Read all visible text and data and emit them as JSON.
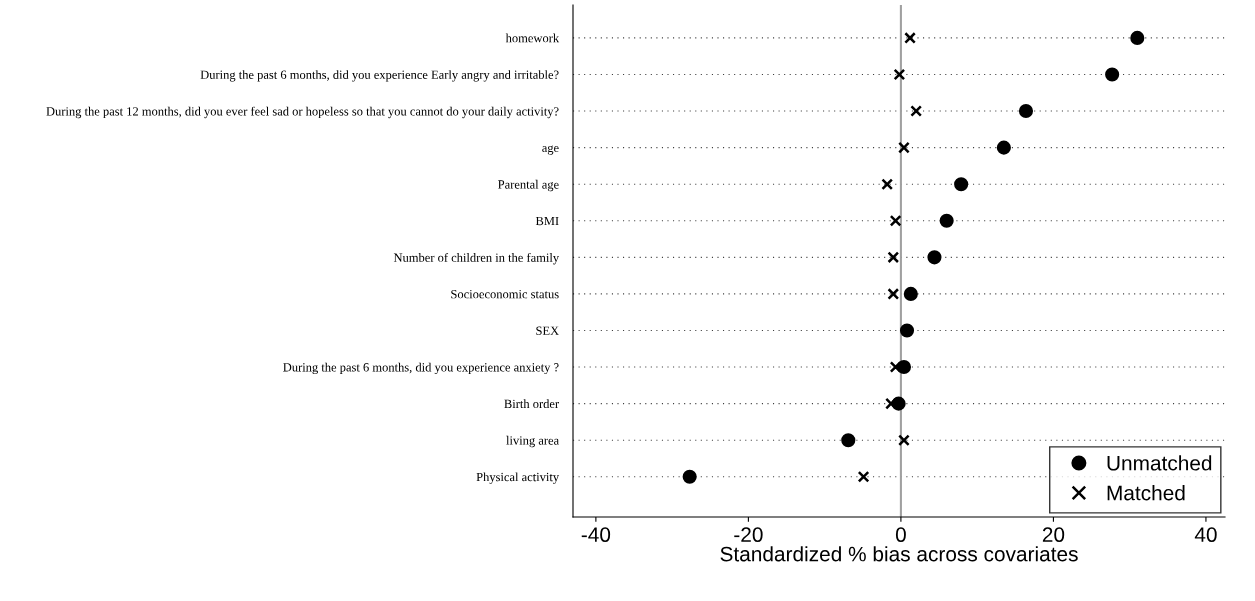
{
  "chart_data": {
    "type": "scatter",
    "xlabel": "Standardized % bias across covariates",
    "categories": [
      "homework",
      "During the past 6 months, did you experience Early angry and irritable?",
      "During the past 12 months, did you ever feel sad or hopeless so that you cannot do your daily activity?",
      "age",
      "Parental age",
      "BMI",
      "Number of children in the family",
      "Socioeconomic status",
      "SEX",
      "During the past 6 months, did you experience anxiety ?",
      "Birth order",
      "living area",
      "Physical activity"
    ],
    "series": [
      {
        "name": "Unmatched",
        "color": "#000000",
        "marker": "circle",
        "values": [
          31.0,
          27.7,
          16.4,
          13.5,
          7.9,
          6.0,
          4.4,
          1.3,
          0.8,
          0.4,
          -0.3,
          -6.9,
          -27.7
        ]
      },
      {
        "name": "Matched",
        "color": "#000000",
        "marker": "cross",
        "values": [
          1.2,
          -0.2,
          2.0,
          0.4,
          -1.8,
          -0.7,
          -1.0,
          -1.0,
          null,
          -0.7,
          -1.3,
          0.4,
          -4.9
        ]
      }
    ],
    "orientation": "horizontal",
    "xlim": [
      -43,
      42.5
    ],
    "xticks": [
      -40,
      -20,
      0,
      20,
      40
    ],
    "ref_lines": [
      {
        "axis": "x",
        "value": 0,
        "color": "#a0a0a0"
      }
    ],
    "grid": "y",
    "legend": "bottom right"
  }
}
